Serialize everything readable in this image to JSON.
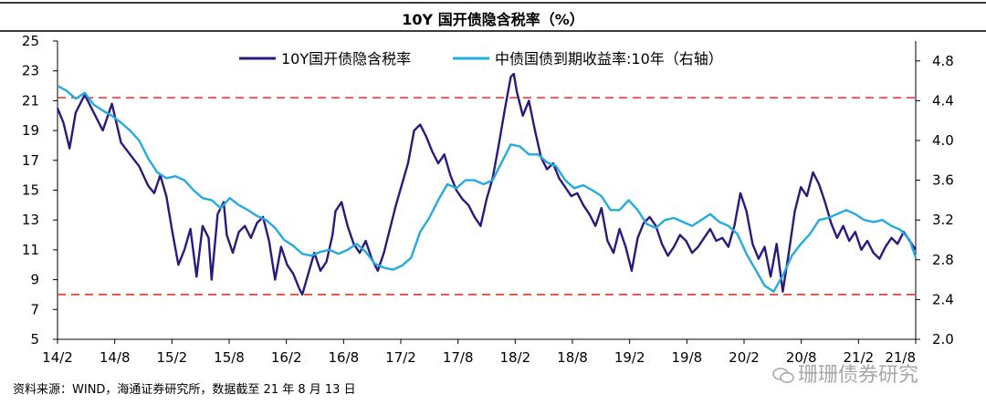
{
  "header": {
    "title": "10Y 国开债隐含税率（%）"
  },
  "footer": {
    "source": "资料来源：WIND，海通证券研究所，数据截至 21 年 8 月 13 日"
  },
  "watermark": {
    "text": "珊珊债券研究",
    "icon": "wechat-icon"
  },
  "chart_data": {
    "type": "line",
    "x_ticks": [
      "14/2",
      "14/8",
      "15/2",
      "15/8",
      "16/2",
      "16/8",
      "17/2",
      "17/8",
      "18/2",
      "18/8",
      "19/2",
      "19/8",
      "20/2",
      "20/8",
      "21/2",
      "21/8"
    ],
    "left_axis": {
      "ticks": [
        "5",
        "7",
        "9",
        "11",
        "13",
        "15",
        "17",
        "19",
        "21",
        "23",
        "25"
      ],
      "min": 5,
      "max": 25
    },
    "right_axis": {
      "ticks": [
        "2.0",
        "2.4",
        "2.8",
        "3.2",
        "3.6",
        "4.0",
        "4.4",
        "4.8"
      ],
      "min": 2.0,
      "max": 5.0
    },
    "reference_lines": [
      {
        "axis": "left",
        "value": 21.2,
        "color": "#e8302a",
        "style": "dashed"
      },
      {
        "axis": "left",
        "value": 8.0,
        "color": "#e8302a",
        "style": "dashed"
      }
    ],
    "legend_position": "top",
    "series": [
      {
        "name": "10Y国开债隐含税率",
        "axis": "left",
        "color": "#2b1a7c",
        "points": [
          [
            0,
            20.5
          ],
          [
            2,
            19.5
          ],
          [
            4,
            17.8
          ],
          [
            6,
            20.2
          ],
          [
            9,
            21.4
          ],
          [
            12,
            20.2
          ],
          [
            15,
            19.0
          ],
          [
            18,
            20.8
          ],
          [
            21,
            18.2
          ],
          [
            24,
            17.4
          ],
          [
            27,
            16.6
          ],
          [
            30,
            15.3
          ],
          [
            32,
            14.8
          ],
          [
            34,
            16.0
          ],
          [
            36,
            14.6
          ],
          [
            38,
            12.2
          ],
          [
            40,
            10.0
          ],
          [
            42,
            11.0
          ],
          [
            44,
            12.4
          ],
          [
            46,
            9.2
          ],
          [
            48,
            12.6
          ],
          [
            50,
            11.8
          ],
          [
            51,
            9.0
          ],
          [
            53,
            13.4
          ],
          [
            55,
            14.2
          ],
          [
            56,
            12.0
          ],
          [
            58,
            10.8
          ],
          [
            60,
            12.2
          ],
          [
            62,
            12.6
          ],
          [
            64,
            11.8
          ],
          [
            66,
            12.8
          ],
          [
            68,
            13.2
          ],
          [
            70,
            11.6
          ],
          [
            72,
            9.0
          ],
          [
            74,
            11.2
          ],
          [
            76,
            10.0
          ],
          [
            78,
            9.4
          ],
          [
            80,
            8.4
          ],
          [
            81,
            8.0
          ],
          [
            83,
            9.4
          ],
          [
            85,
            10.8
          ],
          [
            87,
            9.6
          ],
          [
            89,
            10.2
          ],
          [
            91,
            12.0
          ],
          [
            92,
            13.6
          ],
          [
            94,
            14.2
          ],
          [
            96,
            12.6
          ],
          [
            98,
            11.4
          ],
          [
            100,
            10.8
          ],
          [
            102,
            11.6
          ],
          [
            104,
            10.4
          ],
          [
            106,
            9.6
          ],
          [
            108,
            10.8
          ],
          [
            110,
            12.4
          ],
          [
            112,
            14.0
          ],
          [
            114,
            15.4
          ],
          [
            116,
            16.8
          ],
          [
            118,
            19.0
          ],
          [
            120,
            19.4
          ],
          [
            122,
            18.6
          ],
          [
            124,
            17.6
          ],
          [
            126,
            16.8
          ],
          [
            128,
            17.4
          ],
          [
            130,
            16.0
          ],
          [
            132,
            15.0
          ],
          [
            134,
            14.4
          ],
          [
            136,
            14.0
          ],
          [
            138,
            13.2
          ],
          [
            140,
            12.6
          ],
          [
            142,
            14.4
          ],
          [
            144,
            15.8
          ],
          [
            146,
            18.0
          ],
          [
            148,
            20.4
          ],
          [
            150,
            22.6
          ],
          [
            151,
            22.8
          ],
          [
            152,
            21.6
          ],
          [
            154,
            20.0
          ],
          [
            156,
            21.0
          ],
          [
            158,
            19.0
          ],
          [
            160,
            17.2
          ],
          [
            162,
            16.4
          ],
          [
            164,
            16.8
          ],
          [
            166,
            15.8
          ],
          [
            168,
            15.2
          ],
          [
            170,
            14.6
          ],
          [
            172,
            14.8
          ],
          [
            174,
            14.0
          ],
          [
            176,
            13.4
          ],
          [
            178,
            12.6
          ],
          [
            180,
            13.8
          ],
          [
            182,
            11.6
          ],
          [
            184,
            10.8
          ],
          [
            186,
            12.4
          ],
          [
            188,
            11.2
          ],
          [
            190,
            9.6
          ],
          [
            192,
            11.8
          ],
          [
            194,
            12.8
          ],
          [
            196,
            13.2
          ],
          [
            198,
            12.6
          ],
          [
            200,
            11.4
          ],
          [
            202,
            10.6
          ],
          [
            204,
            11.2
          ],
          [
            206,
            12.0
          ],
          [
            208,
            11.6
          ],
          [
            210,
            10.8
          ],
          [
            212,
            11.2
          ],
          [
            214,
            11.8
          ],
          [
            216,
            12.4
          ],
          [
            218,
            11.6
          ],
          [
            220,
            11.8
          ],
          [
            222,
            11.2
          ],
          [
            224,
            12.6
          ],
          [
            226,
            14.8
          ],
          [
            228,
            13.6
          ],
          [
            230,
            11.4
          ],
          [
            232,
            10.4
          ],
          [
            234,
            11.2
          ],
          [
            236,
            9.2
          ],
          [
            238,
            11.4
          ],
          [
            240,
            8.2
          ],
          [
            242,
            10.8
          ],
          [
            244,
            13.6
          ],
          [
            246,
            15.2
          ],
          [
            248,
            14.6
          ],
          [
            250,
            16.2
          ],
          [
            252,
            15.4
          ],
          [
            254,
            14.2
          ],
          [
            256,
            12.8
          ],
          [
            258,
            11.8
          ],
          [
            260,
            12.6
          ],
          [
            262,
            11.6
          ],
          [
            264,
            12.2
          ],
          [
            266,
            11.0
          ],
          [
            268,
            11.6
          ],
          [
            270,
            10.8
          ],
          [
            272,
            10.4
          ],
          [
            274,
            11.2
          ],
          [
            276,
            11.8
          ],
          [
            278,
            11.4
          ],
          [
            280,
            12.2
          ],
          [
            282,
            11.6
          ],
          [
            284,
            11.0
          ]
        ]
      },
      {
        "name": "中债国债到期收益率:10年（右轴）",
        "axis": "right",
        "color": "#22abe0",
        "points": [
          [
            0,
            4.55
          ],
          [
            3,
            4.5
          ],
          [
            6,
            4.42
          ],
          [
            9,
            4.48
          ],
          [
            12,
            4.36
          ],
          [
            15,
            4.3
          ],
          [
            18,
            4.25
          ],
          [
            21,
            4.18
          ],
          [
            24,
            4.1
          ],
          [
            27,
            4.0
          ],
          [
            30,
            3.82
          ],
          [
            33,
            3.68
          ],
          [
            36,
            3.62
          ],
          [
            39,
            3.64
          ],
          [
            42,
            3.6
          ],
          [
            45,
            3.5
          ],
          [
            48,
            3.42
          ],
          [
            51,
            3.4
          ],
          [
            54,
            3.32
          ],
          [
            57,
            3.42
          ],
          [
            60,
            3.35
          ],
          [
            63,
            3.3
          ],
          [
            66,
            3.24
          ],
          [
            69,
            3.2
          ],
          [
            72,
            3.12
          ],
          [
            75,
            3.0
          ],
          [
            78,
            2.94
          ],
          [
            81,
            2.86
          ],
          [
            84,
            2.84
          ],
          [
            87,
            2.88
          ],
          [
            90,
            2.9
          ],
          [
            93,
            2.86
          ],
          [
            96,
            2.9
          ],
          [
            99,
            2.96
          ],
          [
            102,
            2.88
          ],
          [
            105,
            2.76
          ],
          [
            108,
            2.72
          ],
          [
            111,
            2.7
          ],
          [
            114,
            2.74
          ],
          [
            117,
            2.82
          ],
          [
            120,
            3.08
          ],
          [
            123,
            3.22
          ],
          [
            126,
            3.4
          ],
          [
            129,
            3.56
          ],
          [
            132,
            3.52
          ],
          [
            135,
            3.6
          ],
          [
            138,
            3.6
          ],
          [
            141,
            3.56
          ],
          [
            144,
            3.6
          ],
          [
            147,
            3.78
          ],
          [
            150,
            3.96
          ],
          [
            153,
            3.94
          ],
          [
            156,
            3.86
          ],
          [
            159,
            3.86
          ],
          [
            162,
            3.78
          ],
          [
            165,
            3.74
          ],
          [
            168,
            3.6
          ],
          [
            171,
            3.52
          ],
          [
            174,
            3.55
          ],
          [
            177,
            3.5
          ],
          [
            180,
            3.44
          ],
          [
            183,
            3.3
          ],
          [
            186,
            3.3
          ],
          [
            189,
            3.4
          ],
          [
            192,
            3.3
          ],
          [
            195,
            3.16
          ],
          [
            198,
            3.12
          ],
          [
            201,
            3.2
          ],
          [
            204,
            3.22
          ],
          [
            207,
            3.18
          ],
          [
            210,
            3.14
          ],
          [
            213,
            3.2
          ],
          [
            216,
            3.26
          ],
          [
            219,
            3.18
          ],
          [
            222,
            3.14
          ],
          [
            225,
            3.06
          ],
          [
            228,
            2.86
          ],
          [
            231,
            2.7
          ],
          [
            234,
            2.54
          ],
          [
            237,
            2.48
          ],
          [
            240,
            2.64
          ],
          [
            243,
            2.84
          ],
          [
            246,
            2.96
          ],
          [
            249,
            3.06
          ],
          [
            252,
            3.2
          ],
          [
            255,
            3.22
          ],
          [
            258,
            3.26
          ],
          [
            261,
            3.3
          ],
          [
            264,
            3.26
          ],
          [
            267,
            3.2
          ],
          [
            270,
            3.18
          ],
          [
            273,
            3.2
          ],
          [
            276,
            3.14
          ],
          [
            279,
            3.1
          ],
          [
            282,
            3.0
          ],
          [
            284,
            2.82
          ]
        ]
      }
    ]
  }
}
